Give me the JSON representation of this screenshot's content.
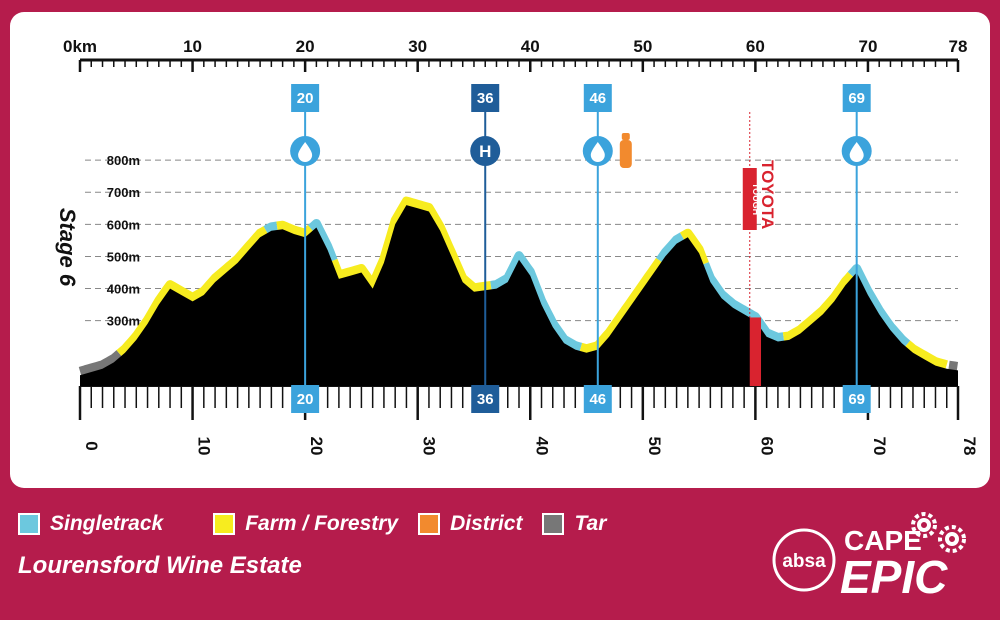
{
  "chart_data": {
    "type": "area",
    "title": "Stage 6",
    "x_unit_label": "0km",
    "xlim": [
      0,
      78
    ],
    "x_ticks_top": [
      "0km",
      "10",
      "20",
      "30",
      "40",
      "50",
      "60",
      "70",
      "78"
    ],
    "x_ticks_bottom": [
      "0",
      "10",
      "20",
      "30",
      "40",
      "50",
      "60",
      "70",
      "78"
    ],
    "y_ticks": [
      "300m",
      "400m",
      "500m",
      "600m",
      "700m",
      "800m"
    ],
    "y_tick_values": [
      300,
      400,
      500,
      600,
      700,
      800
    ],
    "ylim": [
      0,
      900
    ],
    "elevation_km": [
      0,
      1,
      2,
      3,
      4,
      5,
      6,
      7,
      8,
      9,
      10,
      11,
      12,
      13,
      14,
      15,
      16,
      17,
      18,
      19,
      20,
      21,
      22,
      23,
      24,
      25,
      26,
      27,
      28,
      29,
      30,
      31,
      32,
      33,
      34,
      35,
      36,
      37,
      38,
      39,
      40,
      41,
      42,
      43,
      44,
      45,
      46,
      47,
      48,
      49,
      50,
      51,
      52,
      53,
      54,
      55,
      56,
      57,
      58,
      59,
      60,
      61,
      62,
      63,
      64,
      65,
      66,
      67,
      68,
      69,
      70,
      71,
      72,
      73,
      74,
      75,
      76,
      77,
      78
    ],
    "elevation_m": [
      130,
      140,
      150,
      170,
      200,
      240,
      290,
      350,
      400,
      380,
      360,
      380,
      420,
      450,
      480,
      520,
      560,
      580,
      585,
      570,
      560,
      590,
      520,
      430,
      440,
      450,
      400,
      480,
      600,
      660,
      650,
      640,
      580,
      500,
      420,
      390,
      395,
      400,
      420,
      490,
      440,
      350,
      280,
      230,
      210,
      200,
      210,
      250,
      300,
      350,
      400,
      450,
      500,
      540,
      560,
      510,
      420,
      370,
      340,
      320,
      300,
      250,
      235,
      240,
      260,
      290,
      320,
      360,
      410,
      450,
      380,
      320,
      270,
      230,
      200,
      180,
      160,
      150,
      145
    ],
    "surface_segments": [
      {
        "type": "Tar",
        "from": 0,
        "to": 3.5
      },
      {
        "type": "Farm / Forestry",
        "from": 3.5,
        "to": 16.5
      },
      {
        "type": "Singletrack",
        "from": 16.5,
        "to": 17.5
      },
      {
        "type": "Farm / Forestry",
        "from": 17.5,
        "to": 20.5
      },
      {
        "type": "Singletrack",
        "from": 20.5,
        "to": 22.5
      },
      {
        "type": "Farm / Forestry",
        "from": 22.5,
        "to": 36.5
      },
      {
        "type": "Singletrack",
        "from": 36.5,
        "to": 44.5
      },
      {
        "type": "Farm / Forestry",
        "from": 44.5,
        "to": 51.5
      },
      {
        "type": "Singletrack",
        "from": 51.5,
        "to": 53.5
      },
      {
        "type": "Farm / Forestry",
        "from": 53.5,
        "to": 55.5
      },
      {
        "type": "Singletrack",
        "from": 55.5,
        "to": 62.5
      },
      {
        "type": "Farm / Forestry",
        "from": 62.5,
        "to": 68.5
      },
      {
        "type": "Singletrack",
        "from": 68.5,
        "to": 73.5
      },
      {
        "type": "Farm / Forestry",
        "from": 73.5,
        "to": 77.2
      },
      {
        "type": "Tar",
        "from": 77.2,
        "to": 78
      }
    ],
    "markers": [
      {
        "km": 20,
        "label": "20",
        "icon": "water-drop-icon",
        "color": "#3ba3dc"
      },
      {
        "km": 36,
        "label": "36",
        "icon": "hospital-icon",
        "icon_text": "H",
        "color": "#1f5d99"
      },
      {
        "km": 46,
        "label": "46",
        "icon": "water-drop-icon",
        "color": "#3ba3dc",
        "extra_icon": "bottle-icon"
      },
      {
        "km": 69,
        "label": "69",
        "icon": "water-drop-icon",
        "color": "#3ba3dc"
      }
    ],
    "sponsor_section": {
      "from": 59.5,
      "to": 60.5,
      "title": "TOYOTA",
      "subtitle": "TOUGH",
      "color": "#d9232f"
    }
  },
  "legend": [
    {
      "label": "Singletrack",
      "color": "#6cc8de"
    },
    {
      "label": "Farm / Forestry",
      "color": "#f7ec1f"
    },
    {
      "label": "District",
      "color": "#f28a2e"
    },
    {
      "label": "Tar",
      "color": "#777777"
    }
  ],
  "venue": "Lourensford Wine Estate",
  "logo": {
    "bank": "absa",
    "top": "CAPE",
    "bottom": "EPIC"
  },
  "colors": {
    "background": "#b51c4c",
    "profile": "#000000",
    "grid": "#888888"
  }
}
